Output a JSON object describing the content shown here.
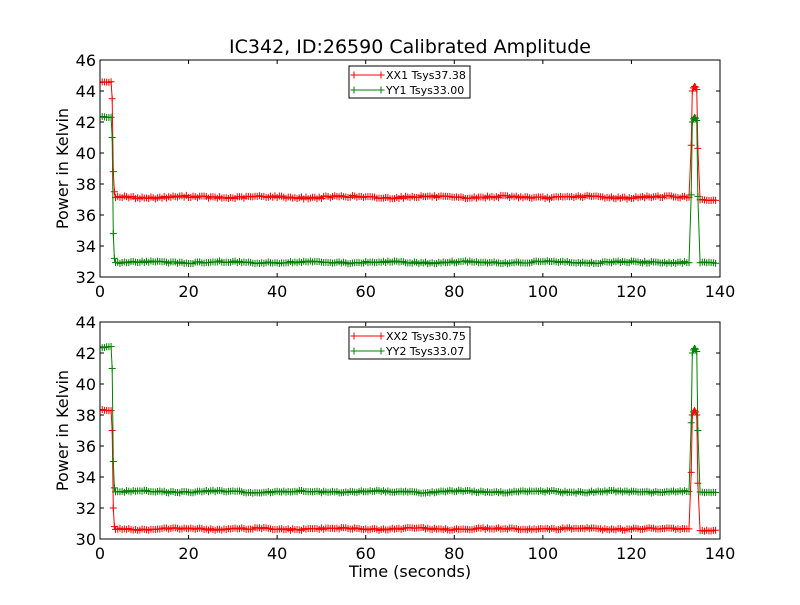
{
  "figure_title": "IC342, ID:26590 Calibrated Amplitude",
  "chart_data": [
    {
      "type": "line",
      "title": "IC342, ID:26590 Calibrated Amplitude",
      "xlabel": "",
      "ylabel": "Power in Kelvin",
      "xlim": [
        0,
        140
      ],
      "ylim": [
        32,
        46
      ],
      "xticks": [
        0,
        20,
        40,
        60,
        80,
        100,
        120,
        140
      ],
      "yticks": [
        32,
        34,
        36,
        38,
        40,
        42,
        44,
        46
      ],
      "grid": false,
      "legend_position": "top-center",
      "series": [
        {
          "name": "XX1 Tsys37.38",
          "color": "#ff0000",
          "marker": "plus",
          "segments": [
            {
              "x_start": 0,
              "x_end": 2.5,
              "dt": 0.5,
              "base": 44.55,
              "amp": 0.06
            },
            {
              "x_start": 2.5,
              "x_end": 3.5,
              "dt": 0.25,
              "points": [
                [
                  2.75,
                  43.5
                ],
                [
                  3.0,
                  38.8
                ],
                [
                  3.25,
                  37.5
                ]
              ]
            },
            {
              "x_start": 3.5,
              "x_end": 133.25,
              "dt": 0.5,
              "base": 37.15,
              "amp": 0.12
            },
            {
              "x_start": 133.5,
              "x_end": 135.0,
              "dt": 0.25,
              "points": [
                [
                  133.5,
                  40.5
                ],
                [
                  133.75,
                  44.0
                ],
                [
                  134.0,
                  44.2
                ],
                [
                  134.25,
                  44.3
                ],
                [
                  134.5,
                  44.25
                ],
                [
                  134.75,
                  44.1
                ],
                [
                  135.0,
                  40.3
                ]
              ]
            },
            {
              "x_start": 135.5,
              "x_end": 139,
              "dt": 0.5,
              "base": 37.0,
              "amp": 0.08
            }
          ]
        },
        {
          "name": "YY1 Tsys33.00",
          "color": "#008000",
          "marker": "plus",
          "segments": [
            {
              "x_start": 0,
              "x_end": 2.5,
              "dt": 0.5,
              "base": 42.35,
              "amp": 0.06
            },
            {
              "x_start": 2.5,
              "x_end": 3.5,
              "dt": 0.25,
              "points": [
                [
                  2.75,
                  41.0
                ],
                [
                  3.0,
                  34.8
                ],
                [
                  3.25,
                  33.2
                ]
              ]
            },
            {
              "x_start": 3.5,
              "x_end": 133.25,
              "dt": 0.5,
              "base": 32.95,
              "amp": 0.1
            },
            {
              "x_start": 133.5,
              "x_end": 135.0,
              "dt": 0.25,
              "points": [
                [
                  133.5,
                  37.3
                ],
                [
                  133.75,
                  42.0
                ],
                [
                  134.0,
                  42.2
                ],
                [
                  134.25,
                  42.3
                ],
                [
                  134.5,
                  42.25
                ],
                [
                  134.75,
                  42.1
                ],
                [
                  135.0,
                  37.2
                ]
              ]
            },
            {
              "x_start": 135.5,
              "x_end": 139,
              "dt": 0.5,
              "base": 32.9,
              "amp": 0.06
            }
          ]
        }
      ]
    },
    {
      "type": "line",
      "title": "",
      "xlabel": "Time (seconds)",
      "ylabel": "Power in Kelvin",
      "xlim": [
        0,
        140
      ],
      "ylim": [
        30,
        44
      ],
      "xticks": [
        0,
        20,
        40,
        60,
        80,
        100,
        120,
        140
      ],
      "yticks": [
        30,
        32,
        34,
        36,
        38,
        40,
        42,
        44
      ],
      "grid": false,
      "legend_position": "top-center",
      "series": [
        {
          "name": "XX2 Tsys30.75",
          "color": "#ff0000",
          "marker": "plus",
          "segments": [
            {
              "x_start": 0,
              "x_end": 2.5,
              "dt": 0.5,
              "base": 38.3,
              "amp": 0.06
            },
            {
              "x_start": 2.5,
              "x_end": 3.5,
              "dt": 0.25,
              "points": [
                [
                  2.75,
                  37.0
                ],
                [
                  3.0,
                  32.0
                ],
                [
                  3.25,
                  30.8
                ]
              ]
            },
            {
              "x_start": 3.5,
              "x_end": 133.25,
              "dt": 0.5,
              "base": 30.65,
              "amp": 0.1
            },
            {
              "x_start": 133.5,
              "x_end": 135.0,
              "dt": 0.25,
              "points": [
                [
                  133.5,
                  34.3
                ],
                [
                  133.75,
                  38.0
                ],
                [
                  134.0,
                  38.2
                ],
                [
                  134.25,
                  38.3
                ],
                [
                  134.5,
                  38.2
                ],
                [
                  134.75,
                  38.0
                ],
                [
                  135.0,
                  33.6
                ]
              ]
            },
            {
              "x_start": 135.5,
              "x_end": 139,
              "dt": 0.5,
              "base": 30.55,
              "amp": 0.05
            }
          ]
        },
        {
          "name": "YY2 Tsys33.07",
          "color": "#008000",
          "marker": "plus",
          "segments": [
            {
              "x_start": 0,
              "x_end": 2.5,
              "dt": 0.5,
              "base": 42.4,
              "amp": 0.06
            },
            {
              "x_start": 2.5,
              "x_end": 3.5,
              "dt": 0.25,
              "points": [
                [
                  2.75,
                  41.0
                ],
                [
                  3.0,
                  35.0
                ],
                [
                  3.25,
                  33.3
                ]
              ]
            },
            {
              "x_start": 3.5,
              "x_end": 133.25,
              "dt": 0.5,
              "base": 33.05,
              "amp": 0.1
            },
            {
              "x_start": 133.5,
              "x_end": 135.0,
              "dt": 0.25,
              "points": [
                [
                  133.5,
                  37.5
                ],
                [
                  133.75,
                  42.0
                ],
                [
                  134.0,
                  42.2
                ],
                [
                  134.25,
                  42.3
                ],
                [
                  134.5,
                  42.25
                ],
                [
                  134.75,
                  42.1
                ],
                [
                  135.0,
                  37.0
                ]
              ]
            },
            {
              "x_start": 135.5,
              "x_end": 139,
              "dt": 0.5,
              "base": 33.0,
              "amp": 0.05
            }
          ]
        }
      ]
    }
  ]
}
